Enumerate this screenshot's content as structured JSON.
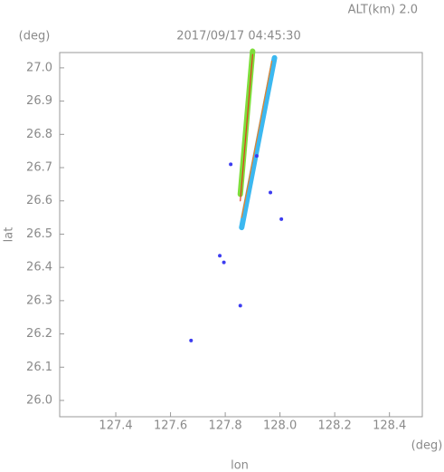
{
  "chart_data": {
    "type": "scatter",
    "title": "2017/09/17 04:45:30",
    "subtitle": "ALT(km) 2.0",
    "y_unit": "(deg)",
    "x_unit": "(deg)",
    "x_label": "lon",
    "y_label": "lat",
    "xlim": [
      127.195,
      128.52
    ],
    "ylim": [
      25.951,
      27.046
    ],
    "xticks": [
      127.4,
      127.6,
      127.8,
      {
        "value": 128.0,
        "label": "128.0"
      },
      128.2,
      128.4
    ],
    "yticks": [
      {
        "value": 26.0,
        "label": "26.0"
      },
      26.1,
      26.2,
      26.3,
      26.4,
      26.5,
      26.6,
      26.7,
      26.8,
      26.9,
      {
        "value": 27.0,
        "label": "27.0"
      }
    ],
    "series": [
      {
        "mark": "line",
        "color": "#7ede3c",
        "x": [
          127.855,
          127.9
        ],
        "values": [
          26.62,
          27.05
        ]
      },
      {
        "mark": "line",
        "color": "#3cb8f0",
        "x": [
          127.86,
          127.98
        ],
        "values": [
          26.52,
          27.03
        ]
      },
      {
        "mark": "thin",
        "color": "#e03c20",
        "x": [
          127.855,
          127.9
        ],
        "values": [
          26.6,
          27.04
        ]
      },
      {
        "mark": "thin",
        "color": "#f08020",
        "x": [
          127.86,
          127.97
        ],
        "values": [
          26.55,
          27.02
        ]
      },
      {
        "mark": "point",
        "color": "#3c3cf0",
        "x": [
          127.82,
          127.78,
          127.795,
          127.915,
          127.965,
          128.005,
          127.855,
          127.675
        ],
        "values": [
          26.71,
          26.435,
          26.415,
          26.735,
          26.625,
          26.545,
          26.285,
          26.18
        ]
      }
    ]
  }
}
